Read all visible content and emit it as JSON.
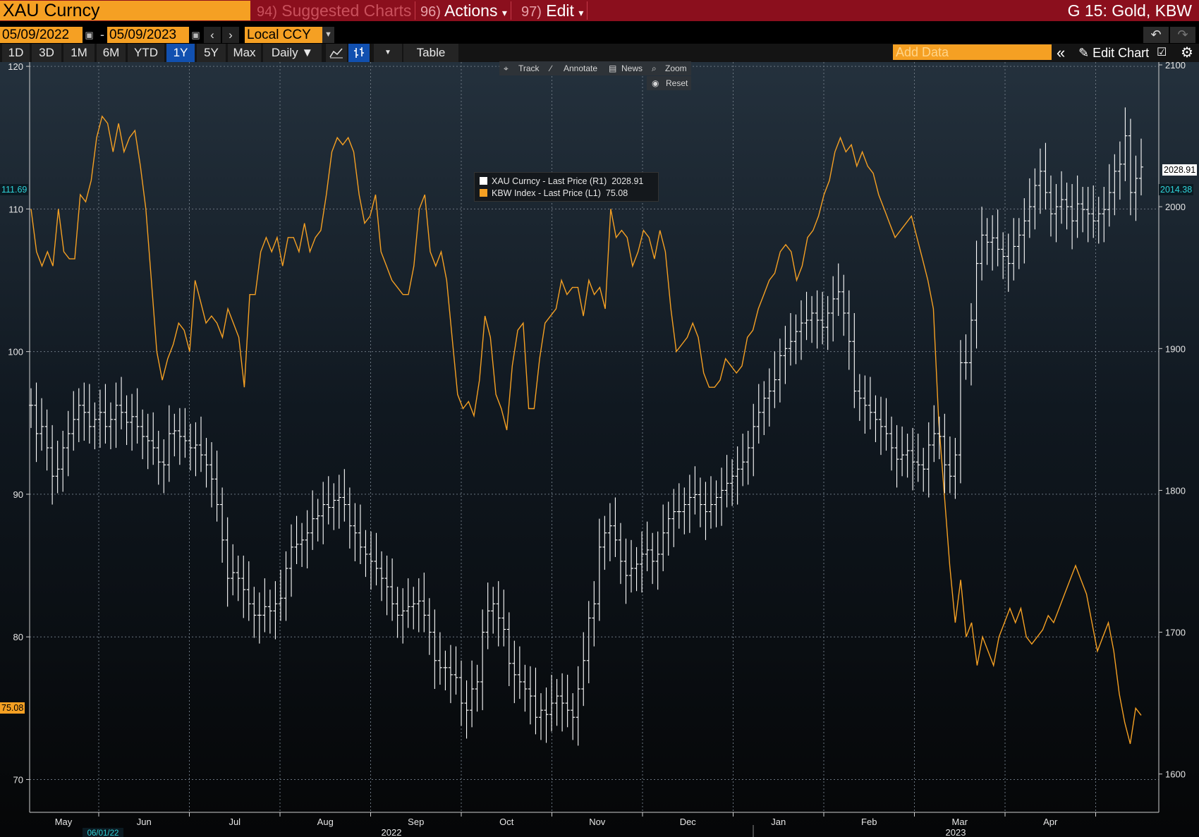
{
  "header": {
    "ticker": "XAU Curncy",
    "menus": [
      {
        "num": "94)",
        "label": "Suggested Charts",
        "dim": true,
        "caret": ""
      },
      {
        "num": "96)",
        "label": "Actions",
        "dim": false,
        "caret": "▾"
      },
      {
        "num": "97)",
        "label": "Edit",
        "dim": false,
        "caret": "▾"
      }
    ],
    "title": "G 15: Gold, KBW"
  },
  "date_range": {
    "start": "05/09/2022",
    "separator": "-",
    "end": "05/09/2023",
    "currency": "Local CCY"
  },
  "toolbar": {
    "ranges": [
      "1D",
      "3D",
      "1M",
      "6M",
      "YTD",
      "1Y",
      "5Y",
      "Max"
    ],
    "active_range": "1Y",
    "frequency": "Daily ▼",
    "table_label": "Table",
    "add_data_placeholder": "Add Data",
    "edit_chart_label": "Edit Chart"
  },
  "chart_tools": {
    "track": "Track",
    "annotate": "Annotate",
    "news": "News",
    "zoom": "Zoom",
    "reset": "Reset"
  },
  "legend": [
    {
      "label": "XAU Curncy - Last Price (R1)",
      "value": "2028.91",
      "color": "#ffffff"
    },
    {
      "label": "KBW Index - Last Price (L1)",
      "value": "75.08",
      "color": "#f5a023"
    }
  ],
  "price_tags": {
    "left_kbw": "75.08",
    "left_ref": "111.69",
    "right_xau": "2028.91",
    "right_ref": "2014.38"
  },
  "colors": {
    "accent_orange": "#f5a023",
    "header_red": "#8b0f1d",
    "active_blue": "#1150b0",
    "ref_cyan": "#2fd3d9"
  },
  "chart_data": {
    "type": "line",
    "title": "G 15: Gold, KBW",
    "x_month_labels": [
      "May",
      "Jun",
      "Jul",
      "Aug",
      "Sep",
      "Oct",
      "Nov",
      "Dec",
      "Jan",
      "Feb",
      "Mar",
      "Apr"
    ],
    "x_year_labels": [
      "2022",
      "2023"
    ],
    "x_marker_label": "06/01/22",
    "left_axis": {
      "ticks": [
        120,
        110,
        100,
        90,
        80,
        70
      ],
      "ylim": [
        67.7,
        120.3
      ]
    },
    "right_axis": {
      "ticks": [
        2100,
        2000,
        1900,
        1800,
        1700,
        1600
      ],
      "ylim": [
        1573,
        2102
      ]
    },
    "series": [
      {
        "name": "KBW Index - Last Price (L1)",
        "axis": "left",
        "style": "line",
        "color": "#f5a023",
        "values": [
          110,
          107,
          106,
          107,
          106,
          110,
          107,
          106.5,
          106.5,
          111,
          110.5,
          112,
          115,
          116.5,
          116,
          114,
          116,
          114,
          115,
          115.5,
          113,
          110,
          105,
          100,
          98,
          99.5,
          100.5,
          102,
          101.5,
          100,
          105,
          103.5,
          102,
          102.5,
          102,
          101,
          103,
          102,
          101,
          97.5,
          104,
          104,
          107,
          108,
          107,
          108,
          106,
          108,
          108,
          107,
          109,
          107,
          108,
          108.5,
          111,
          114,
          115,
          114.5,
          115,
          114,
          111,
          109,
          109.5,
          111,
          107,
          106,
          105,
          104.5,
          104,
          104,
          106,
          110,
          111,
          107,
          106,
          107,
          105,
          101,
          97,
          96,
          96.5,
          95.5,
          98,
          102.5,
          101,
          97,
          96,
          94.5,
          99,
          101.5,
          102,
          96,
          96,
          99.5,
          102,
          102.5,
          103,
          105,
          104,
          104.5,
          104.5,
          102.5,
          105,
          104,
          104.5,
          103,
          110,
          108,
          108.5,
          108,
          106,
          107,
          108.5,
          108,
          106.5,
          108.5,
          107,
          103,
          100,
          100.5,
          101,
          102,
          101,
          98.5,
          97.5,
          97.5,
          98,
          99.5,
          99,
          98.5,
          99,
          101,
          101.5,
          103,
          104,
          105,
          105.5,
          107,
          107.5,
          107,
          105,
          106,
          108,
          108.5,
          109.5,
          111,
          112,
          114,
          115,
          114,
          114.5,
          113,
          114,
          113,
          112.5,
          111,
          110,
          109,
          108,
          108.5,
          109,
          109.5,
          108,
          106.5,
          105,
          103,
          95,
          90,
          85,
          81,
          84,
          80,
          81,
          78,
          80,
          79,
          78,
          80,
          81,
          82,
          81,
          82,
          80,
          79.5,
          80,
          80.5,
          81.5,
          81,
          82,
          83,
          84,
          85,
          84,
          83,
          81,
          79,
          80,
          81,
          79,
          76,
          74,
          72.5,
          75,
          74.5
        ]
      },
      {
        "name": "XAU Curncy - Last Price (R1)",
        "axis": "right",
        "style": "ohlc-bars",
        "color": "#ffffff",
        "values": [
          1860,
          1840,
          1845,
          1830,
          1810,
          1815,
          1830,
          1840,
          1850,
          1860,
          1855,
          1845,
          1850,
          1855,
          1845,
          1850,
          1860,
          1855,
          1848,
          1852,
          1845,
          1838,
          1835,
          1830,
          1820,
          1818,
          1840,
          1842,
          1838,
          1835,
          1830,
          1832,
          1825,
          1818,
          1808,
          1790,
          1765,
          1738,
          1742,
          1738,
          1730,
          1720,
          1712,
          1712,
          1718,
          1715,
          1720,
          1724,
          1745,
          1760,
          1762,
          1765,
          1770,
          1780,
          1782,
          1790,
          1788,
          1793,
          1795,
          1790,
          1775,
          1770,
          1760,
          1755,
          1750,
          1745,
          1738,
          1732,
          1720,
          1712,
          1715,
          1718,
          1720,
          1722,
          1712,
          1700,
          1680,
          1675,
          1675,
          1670,
          1668,
          1650,
          1645,
          1660,
          1665,
          1700,
          1715,
          1720,
          1710,
          1702,
          1678,
          1670,
          1665,
          1660,
          1655,
          1640,
          1645,
          1642,
          1650,
          1655,
          1650,
          1645,
          1640,
          1660,
          1680,
          1710,
          1720,
          1760,
          1770,
          1775,
          1765,
          1750,
          1740,
          1745,
          1748,
          1755,
          1758,
          1750,
          1755,
          1770,
          1780,
          1785,
          1785,
          1790,
          1795,
          1797,
          1790,
          1785,
          1790,
          1795,
          1800,
          1805,
          1810,
          1815,
          1820,
          1830,
          1845,
          1855,
          1865,
          1870,
          1878,
          1895,
          1900,
          1905,
          1912,
          1918,
          1920,
          1925,
          1920,
          1915,
          1925,
          1935,
          1940,
          1925,
          1905,
          1870,
          1865,
          1860,
          1855,
          1850,
          1845,
          1840,
          1830,
          1822,
          1825,
          1828,
          1820,
          1818,
          1815,
          1832,
          1840,
          1838,
          1818,
          1810,
          1825,
          1890,
          1890,
          1920,
          1960,
          1980,
          1975,
          1978,
          1970,
          1965,
          1960,
          1972,
          1980,
          1990,
          2000,
          2015,
          2025,
          2010,
          1995,
          2000,
          2005,
          2000,
          1990,
          2002,
          1998,
          1995,
          1990,
          1995,
          1998,
          2010,
          2025,
          2030,
          2050,
          2010,
          2020,
          2028
        ]
      }
    ],
    "grid": true
  }
}
